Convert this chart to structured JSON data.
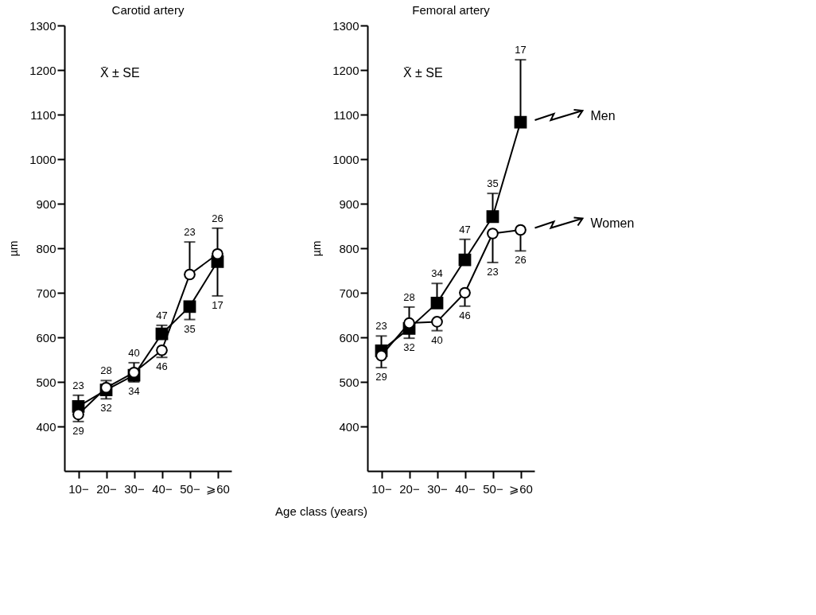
{
  "chart_data": [
    {
      "type": "line",
      "title": "Carotid artery",
      "xlabel": "Age class (years)",
      "ylabel": "µm",
      "categories": [
        "10−",
        "20−",
        "30−",
        "40−",
        "50−",
        "⩾60"
      ],
      "ylim": [
        300,
        1300
      ],
      "yticks": [
        400,
        500,
        600,
        700,
        800,
        900,
        1000,
        1100,
        1200,
        1300
      ],
      "line_style": "solid",
      "series": [
        {
          "color": "#000000",
          "marker": "square",
          "values": [
            445,
            482,
            515,
            608,
            669,
            770
          ],
          "errors": [
            [
              445,
              470
            ],
            [
              462,
              482
            ],
            [
              500,
              515
            ],
            [
              608,
              627
            ],
            [
              640,
              669
            ],
            [
              693,
              770
            ]
          ]
        },
        {
          "color": "#000000",
          "marker": "circle",
          "values": [
            427,
            487,
            521,
            571,
            741,
            787
          ],
          "errors": [
            [
              411,
              427
            ],
            [
              487,
              503
            ],
            [
              521,
              543
            ],
            [
              555,
              571
            ],
            [
              741,
              814
            ],
            [
              787,
              845
            ]
          ]
        }
      ],
      "annotations": [
        "X̄ ± SE",
        {
          "text": "23",
          "x": "10−",
          "y": 470
        },
        {
          "text": "29",
          "x": "10−",
          "y": 411
        },
        {
          "text": "28",
          "x": "20−",
          "y": 503
        },
        {
          "text": "32",
          "x": "20−",
          "y": 462
        },
        {
          "text": "40",
          "x": "30−",
          "y": 543
        },
        {
          "text": "34",
          "x": "30−",
          "y": 500
        },
        {
          "text": "47",
          "x": "40−",
          "y": 627
        },
        {
          "text": "46",
          "x": "40−",
          "y": 555
        },
        {
          "text": "23",
          "x": "50−",
          "y": 814
        },
        {
          "text": "35",
          "x": "50−",
          "y": 640
        },
        {
          "text": "26",
          "x": "⩾60",
          "y": 845
        },
        {
          "text": "17",
          "x": "⩾60",
          "y": 693
        }
      ]
    },
    {
      "type": "line",
      "title": "Femoral artery",
      "ylabel": "µm",
      "categories": [
        "10−",
        "20−",
        "30−",
        "40−",
        "50−",
        "⩾60"
      ],
      "ylim": [
        300,
        1300
      ],
      "yticks": [
        400,
        500,
        600,
        700,
        800,
        900,
        1000,
        1100,
        1200,
        1300
      ],
      "line_style": "solid",
      "legend": "right",
      "series": [
        {
          "name": "Men",
          "color": "#000000",
          "marker": "square",
          "values": [
            570,
            620,
            677,
            774,
            871,
            1083
          ],
          "errors": [
            [
              570,
              603
            ],
            [
              598,
              620
            ],
            [
              677,
              721
            ],
            [
              774,
              820
            ],
            [
              871,
              923
            ],
            [
              1083,
              1223
            ]
          ]
        },
        {
          "name": "Women",
          "color": "#000000",
          "marker": "circle",
          "values": [
            559,
            632,
            635,
            700,
            833,
            841
          ],
          "errors": [
            [
              532,
              559
            ],
            [
              632,
              668
            ],
            [
              615,
              635
            ],
            [
              670,
              700
            ],
            [
              768,
              833
            ],
            [
              794,
              841
            ]
          ]
        }
      ],
      "annotations": [
        "X̄ ± SE",
        {
          "text": "23",
          "x": "10−",
          "y": 603
        },
        {
          "text": "29",
          "x": "10−",
          "y": 532
        },
        {
          "text": "28",
          "x": "20−",
          "y": 668
        },
        {
          "text": "32",
          "x": "20−",
          "y": 598
        },
        {
          "text": "34",
          "x": "30−",
          "y": 721
        },
        {
          "text": "40",
          "x": "30−",
          "y": 615
        },
        {
          "text": "47",
          "x": "40−",
          "y": 820
        },
        {
          "text": "46",
          "x": "40−",
          "y": 670
        },
        {
          "text": "35",
          "x": "50−",
          "y": 923
        },
        {
          "text": "23",
          "x": "50−",
          "y": 768
        },
        {
          "text": "17",
          "x": "⩾60",
          "y": 1223
        },
        {
          "text": "26",
          "x": "⩾60",
          "y": 794
        }
      ]
    }
  ]
}
